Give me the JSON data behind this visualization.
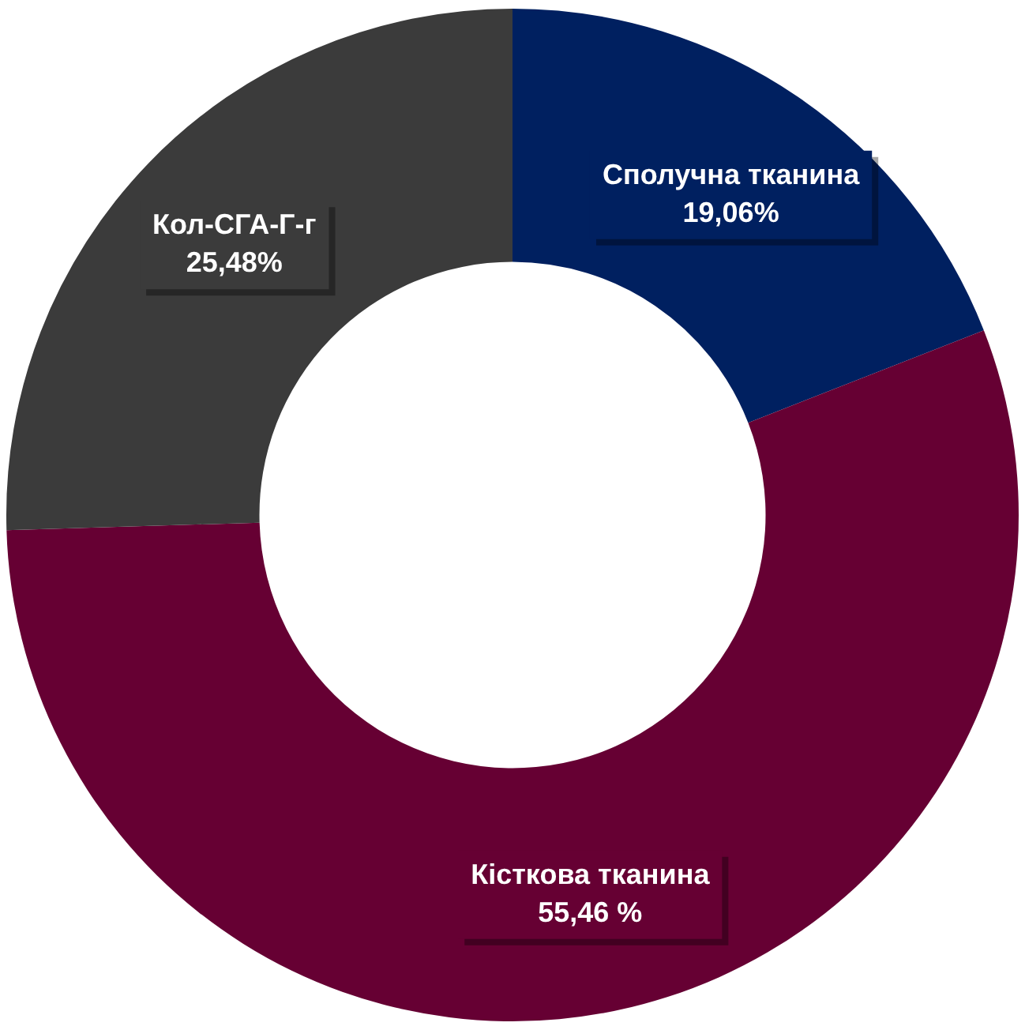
{
  "chart_data": {
    "type": "donut",
    "categories": [
      "Сполучна тканина",
      "Кісткова тканина",
      "Кол-СГА-Г-г"
    ],
    "values": [
      19.06,
      55.46,
      25.48
    ],
    "colors": [
      "#002060",
      "#660033",
      "#3b3b3b"
    ],
    "value_labels": [
      "19,06%",
      "55,46 %",
      "25,48%"
    ],
    "legend": false
  }
}
